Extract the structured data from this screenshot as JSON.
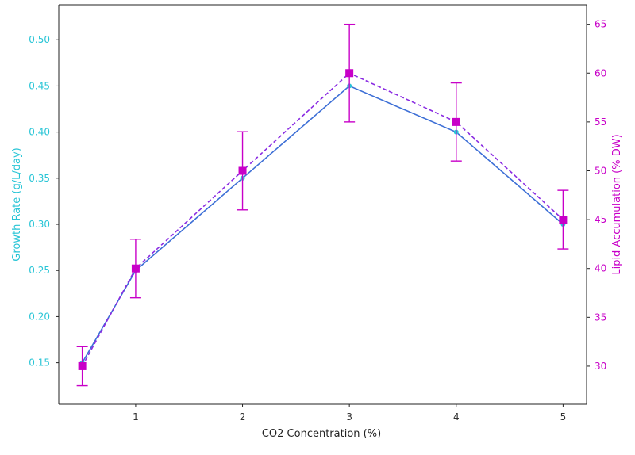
{
  "colors": {
    "growth": "#29c5d6",
    "lipid": "#c800c8",
    "growth_line": "#3d6fd6",
    "lipid_line": "#8a2be2",
    "axis": "#222222"
  },
  "chart_data": {
    "type": "line",
    "x": [
      0.5,
      1,
      2,
      3,
      4,
      5
    ],
    "xlabel": "CO2 Concentration (%)",
    "x_ticks": [
      1,
      2,
      3,
      4,
      5
    ],
    "xlim": [
      0.28,
      5.22
    ],
    "left_axis": {
      "label": "Growth Rate (g/L/day)",
      "ylim": [
        0.105,
        0.538
      ],
      "ticks": [
        "0.15",
        "0.20",
        "0.25",
        "0.30",
        "0.35",
        "0.40",
        "0.45",
        "0.50"
      ]
    },
    "right_axis": {
      "label": "Lipid Accumulation (% DW)",
      "ylim": [
        26.1,
        67.0
      ],
      "ticks": [
        "30",
        "35",
        "40",
        "45",
        "50",
        "55",
        "60",
        "65"
      ]
    },
    "series": [
      {
        "axis": "left",
        "values": [
          0.15,
          0.25,
          0.35,
          0.45,
          0.4,
          0.3
        ],
        "errors": [
          0.02,
          0.03,
          0.04,
          0.05,
          0.04,
          0.03
        ]
      },
      {
        "axis": "right",
        "values": [
          30,
          40,
          50,
          60,
          55,
          45
        ],
        "errors": [
          2,
          3,
          4,
          5,
          4,
          3
        ]
      }
    ],
    "grid": false
  }
}
